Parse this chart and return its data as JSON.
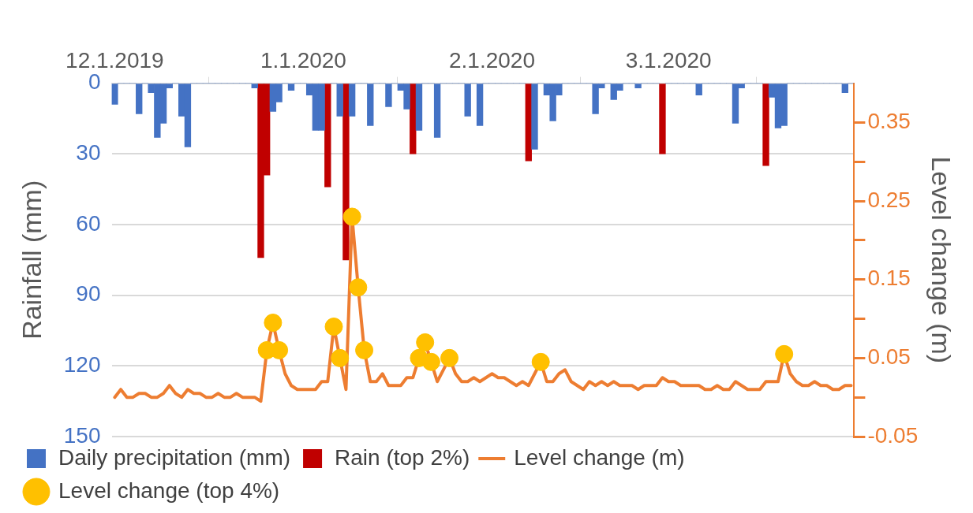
{
  "chart_data": {
    "type": "bar",
    "ylabel": "Rainfall (mm)",
    "y2label": "Level change (m)",
    "x": [
      "2019-12-01",
      "2019-12-02",
      "2019-12-03",
      "2019-12-04",
      "2019-12-05",
      "2019-12-06",
      "2019-12-07",
      "2019-12-08",
      "2019-12-09",
      "2019-12-10",
      "2019-12-11",
      "2019-12-12",
      "2019-12-13",
      "2019-12-14",
      "2019-12-15",
      "2019-12-16",
      "2019-12-17",
      "2019-12-18",
      "2019-12-19",
      "2019-12-20",
      "2019-12-21",
      "2019-12-22",
      "2019-12-23",
      "2019-12-24",
      "2019-12-25",
      "2019-12-26",
      "2019-12-27",
      "2019-12-28",
      "2019-12-29",
      "2019-12-30",
      "2019-12-31",
      "2020-01-01",
      "2020-01-02",
      "2020-01-03",
      "2020-01-04",
      "2020-01-05",
      "2020-01-06",
      "2020-01-07",
      "2020-01-08",
      "2020-01-09",
      "2020-01-10",
      "2020-01-11",
      "2020-01-12",
      "2020-01-13",
      "2020-01-14",
      "2020-01-15",
      "2020-01-16",
      "2020-01-17",
      "2020-01-18",
      "2020-01-19",
      "2020-01-20",
      "2020-01-21",
      "2020-01-22",
      "2020-01-23",
      "2020-01-24",
      "2020-01-25",
      "2020-01-26",
      "2020-01-27",
      "2020-01-28",
      "2020-01-29",
      "2020-01-30",
      "2020-01-31",
      "2020-02-01",
      "2020-02-02",
      "2020-02-03",
      "2020-02-04",
      "2020-02-05",
      "2020-02-06",
      "2020-02-07",
      "2020-02-08",
      "2020-02-09",
      "2020-02-10",
      "2020-02-11",
      "2020-02-12",
      "2020-02-13",
      "2020-02-14",
      "2020-02-15",
      "2020-02-16",
      "2020-02-17",
      "2020-02-18",
      "2020-02-19",
      "2020-02-20",
      "2020-02-21",
      "2020-02-22",
      "2020-02-23",
      "2020-02-24",
      "2020-02-25",
      "2020-02-26",
      "2020-02-27",
      "2020-02-28",
      "2020-02-29",
      "2020-03-01",
      "2020-03-02",
      "2020-03-03",
      "2020-03-04",
      "2020-03-05",
      "2020-03-06",
      "2020-03-07",
      "2020-03-08",
      "2020-03-09",
      "2020-03-10",
      "2020-03-11",
      "2020-03-12",
      "2020-03-13",
      "2020-03-14",
      "2020-03-15",
      "2020-03-16",
      "2020-03-17",
      "2020-03-18",
      "2020-03-19",
      "2020-03-20",
      "2020-03-21",
      "2020-03-22",
      "2020-03-23",
      "2020-03-24",
      "2020-03-25",
      "2020-03-26",
      "2020-03-27",
      "2020-03-28",
      "2020-03-29",
      "2020-03-30",
      "2020-03-31"
    ],
    "series": [
      {
        "name": "Daily precipitation (mm)",
        "color": "#4472c4",
        "values": [
          9,
          0,
          0,
          0,
          13,
          0,
          4,
          23,
          17,
          2,
          0,
          14,
          27,
          0,
          0,
          0,
          0,
          0,
          0,
          0,
          0,
          0,
          0,
          2,
          null,
          null,
          12,
          8,
          0,
          3,
          0,
          0,
          5,
          20,
          20,
          null,
          0,
          14,
          null,
          14,
          0,
          0,
          18,
          0,
          0,
          10,
          0,
          3,
          11,
          null,
          20,
          0,
          0,
          23,
          0,
          0,
          0,
          0,
          14,
          0,
          18,
          0,
          0,
          0,
          0,
          0,
          0,
          0,
          null,
          28,
          0,
          5,
          16,
          5,
          0,
          0,
          0,
          0,
          0,
          13,
          2,
          0,
          7,
          3,
          0,
          0,
          2,
          0,
          0,
          0,
          null,
          0,
          0,
          0,
          0,
          0,
          5,
          0,
          0,
          0,
          0,
          0,
          17,
          2,
          0,
          0,
          0,
          null,
          6,
          19,
          18,
          0,
          0,
          0,
          0,
          0,
          0,
          0,
          0,
          0,
          4,
          0
        ]
      },
      {
        "name": "Rain (top 2%)",
        "color": "#c00000",
        "values": [
          null,
          null,
          null,
          null,
          null,
          null,
          null,
          null,
          null,
          null,
          null,
          null,
          null,
          null,
          null,
          null,
          null,
          null,
          null,
          null,
          null,
          null,
          null,
          null,
          74,
          39,
          null,
          null,
          null,
          null,
          null,
          null,
          null,
          null,
          null,
          44,
          null,
          null,
          75,
          null,
          null,
          null,
          null,
          null,
          null,
          null,
          null,
          null,
          null,
          30,
          null,
          null,
          null,
          null,
          null,
          null,
          null,
          null,
          null,
          null,
          null,
          null,
          null,
          null,
          null,
          null,
          null,
          null,
          33,
          null,
          null,
          null,
          null,
          null,
          null,
          null,
          null,
          null,
          null,
          null,
          null,
          null,
          null,
          null,
          null,
          null,
          null,
          null,
          null,
          null,
          30,
          null,
          null,
          null,
          null,
          null,
          null,
          null,
          null,
          null,
          null,
          null,
          null,
          null,
          null,
          null,
          null,
          35,
          null,
          null,
          null,
          null,
          null,
          null,
          null,
          null,
          null,
          null,
          null,
          null,
          null,
          null
        ]
      },
      {
        "name": "Level change (m)",
        "type": "line",
        "axis": "y2",
        "color": "#ed7d31",
        "marker": "none",
        "line_style": "solid",
        "values": [
          0,
          0.01,
          0,
          0,
          0.005,
          0.005,
          0,
          0,
          0.005,
          0.015,
          0.005,
          0,
          0.01,
          0.005,
          0.005,
          0,
          0,
          0.005,
          0,
          0,
          0.005,
          0,
          0,
          0,
          -0.005,
          0.06,
          0.095,
          0.06,
          0.03,
          0.015,
          0.01,
          0.01,
          0.01,
          0.01,
          0.02,
          0.02,
          0.09,
          0.05,
          0.01,
          0.23,
          0.14,
          0.06,
          0.02,
          0.02,
          0.03,
          0.015,
          0.015,
          0.015,
          0.025,
          0.025,
          0.05,
          0.07,
          0.045,
          0.02,
          0.035,
          0.05,
          0.03,
          0.02,
          0.02,
          0.025,
          0.02,
          0.025,
          0.03,
          0.025,
          0.025,
          0.02,
          0.015,
          0.02,
          0.015,
          0.03,
          0.045,
          0.02,
          0.02,
          0.03,
          0.035,
          0.02,
          0.015,
          0.01,
          0.02,
          0.015,
          0.02,
          0.015,
          0.02,
          0.015,
          0.015,
          0.015,
          0.01,
          0.015,
          0.015,
          0.015,
          0.025,
          0.02,
          0.02,
          0.015,
          0.015,
          0.015,
          0.015,
          0.01,
          0.01,
          0.015,
          0.01,
          0.01,
          0.02,
          0.015,
          0.01,
          0.01,
          0.01,
          0.02,
          0.02,
          0.02,
          0.055,
          0.03,
          0.02,
          0.015,
          0.015,
          0.02,
          0.015,
          0.015,
          0.01,
          0.01,
          0.015,
          0.015
        ]
      },
      {
        "name": "Level change (top 4%)",
        "type": "scatter",
        "axis": "y2",
        "color": "#ffc000",
        "marker": "circle",
        "x": [
          "2019-12-26",
          "2019-12-27",
          "2019-12-28",
          "2020-01-06",
          "2020-01-07",
          "2020-01-09",
          "2020-01-10",
          "2020-01-11",
          "2020-01-20",
          "2020-01-21",
          "2020-01-22",
          "2020-01-25",
          "2020-02-09",
          "2020-03-20"
        ],
        "values": [
          0.06,
          0.095,
          0.06,
          0.09,
          0.05,
          0.23,
          0.14,
          0.06,
          0.05,
          0.07,
          0.045,
          0.05,
          0.045,
          0.055
        ]
      }
    ],
    "xlim": [
      "2019-11-30T12:00",
      "2020-03-31T12:00"
    ],
    "xticks": [
      {
        "value": "2019-12-01",
        "label": "12.1.2019"
      },
      {
        "value": "2020-01-01",
        "label": "1.1.2020"
      },
      {
        "value": "2020-02-01",
        "label": "2.1.2020"
      },
      {
        "value": "2020-03-01",
        "label": "3.1.2020"
      }
    ],
    "ylim": [
      150,
      0
    ],
    "yticks": [
      0,
      30,
      60,
      90,
      120,
      150
    ],
    "y2lim": [
      -0.05,
      0.4
    ],
    "y2ticks": [
      -0.05,
      {
        "value": 0,
        "label": null
      },
      0.05,
      {
        "value": 0.1,
        "label": null
      },
      0.15,
      {
        "value": 0.2,
        "label": null
      },
      0.25,
      {
        "value": 0.3,
        "label": null
      },
      0.35
    ],
    "grid": "y",
    "legend": "bottom"
  }
}
